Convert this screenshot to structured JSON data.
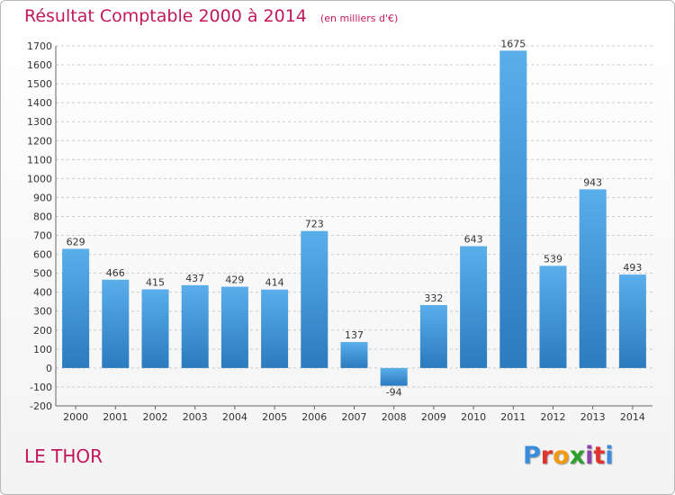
{
  "header": {
    "title": "Résultat Comptable 2000 à 2014",
    "subtitle": "(en milliers d'€)"
  },
  "footer": {
    "commune": "LE THOR",
    "brand": "Proxiti",
    "brand_colors": [
      "#3a8dde",
      "#e2342d",
      "#f39c12",
      "#2ca02c",
      "#8e44ad",
      "#e2342d",
      "#3a8dde"
    ]
  },
  "colors": {
    "title": "#c2185b",
    "bar_light": "#5aaeea",
    "bar_dark": "#2a7bbf",
    "grid": "#cccccc",
    "axis_text": "#333333"
  },
  "chart_data": {
    "type": "bar",
    "categories": [
      "2000",
      "2001",
      "2002",
      "2003",
      "2004",
      "2005",
      "2006",
      "2007",
      "2008",
      "2009",
      "2010",
      "2011",
      "2012",
      "2013",
      "2014"
    ],
    "values": [
      629,
      466,
      415,
      437,
      429,
      414,
      723,
      137,
      -94,
      332,
      643,
      1675,
      539,
      943,
      493
    ],
    "data_labels": [
      "629",
      "466",
      "415",
      "437",
      "429",
      "414",
      "723",
      "137",
      "-94",
      "332",
      "643",
      "1675",
      "539",
      "943",
      "493"
    ],
    "ylim": [
      -200,
      1700
    ],
    "yticks": [
      -200,
      -100,
      0,
      100,
      200,
      300,
      400,
      500,
      600,
      700,
      800,
      900,
      1000,
      1100,
      1200,
      1300,
      1400,
      1500,
      1600,
      1700
    ],
    "grid": "horizontal dashed",
    "legend": "none"
  }
}
